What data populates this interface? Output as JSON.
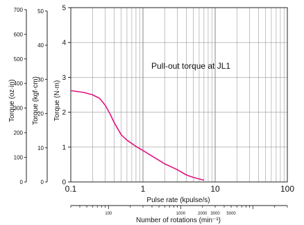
{
  "chart_data": {
    "type": "line",
    "xscale": "log",
    "xlim": [
      0.1,
      100
    ],
    "ylim": [
      0,
      5
    ],
    "xlabel": "Pulse rate (kpulse/s)",
    "ylabel": "Torque (N·m)",
    "x_ticks": [
      0.1,
      1,
      10,
      100
    ],
    "x_tick_labels": [
      "0.1",
      "1",
      "10",
      "100"
    ],
    "y_ticks": [
      0,
      1,
      2,
      3,
      4,
      5
    ],
    "y_tick_labels": [
      "0",
      "1",
      "2",
      "3",
      "4",
      "5"
    ],
    "annotation": "Pull-out torque at JL1",
    "grid": true,
    "series": [
      {
        "name": "Pull-out torque at JL1",
        "color": "#e0137e",
        "x": [
          0.1,
          0.15,
          0.2,
          0.25,
          0.3,
          0.35,
          0.4,
          0.5,
          0.6,
          0.8,
          1,
          1.5,
          2,
          3,
          4,
          5,
          7
        ],
        "y": [
          2.62,
          2.57,
          2.5,
          2.4,
          2.2,
          1.95,
          1.7,
          1.35,
          1.2,
          1.02,
          0.9,
          0.68,
          0.52,
          0.35,
          0.2,
          0.13,
          0.05
        ]
      }
    ],
    "secondary_y_axes": [
      {
        "label": "Torque (kgf·cm)",
        "ticks": [
          0,
          10,
          20,
          30,
          40,
          50
        ],
        "tick_labels": [
          "0",
          "10",
          "20",
          "30",
          "40",
          "50"
        ],
        "lim": [
          0,
          50.985
        ]
      },
      {
        "label": "Torque (oz·in)",
        "ticks": [
          0,
          100,
          200,
          300,
          400,
          500,
          600,
          700
        ],
        "tick_labels": [
          "0",
          "100",
          "200",
          "300",
          "400",
          "500",
          "600",
          "700"
        ],
        "lim": [
          0,
          708.06
        ]
      }
    ],
    "secondary_x_axis": {
      "label": "Number of rotations (min⁻¹)",
      "ticks": [
        100,
        1000,
        2000,
        3000,
        5000
      ],
      "tick_labels": [
        "100",
        "1000",
        "2000",
        "3000",
        "5000"
      ],
      "lim": [
        30,
        30000
      ],
      "scale": "log"
    }
  }
}
